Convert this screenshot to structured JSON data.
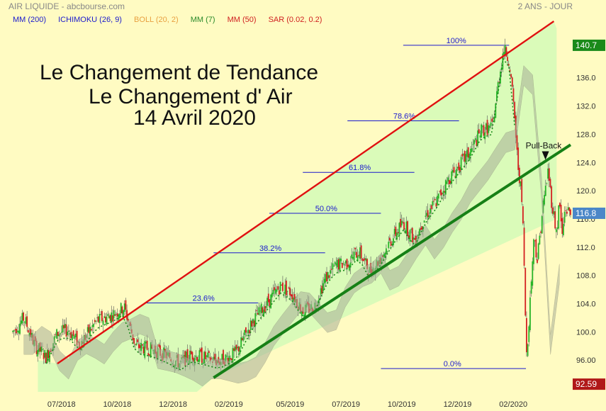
{
  "header": {
    "symbol": "AIR LIQUIDE - abcbourse.com",
    "period": "2 ANS - JOUR"
  },
  "legend": [
    {
      "label": "MM (200)",
      "color": "#1a1acd"
    },
    {
      "label": "ICHIMOKU (26, 9)",
      "color": "#1a1acd"
    },
    {
      "label": "BOLL (20, 2)",
      "color": "#e8a040"
    },
    {
      "label": "MM (7)",
      "color": "#2a8a2a"
    },
    {
      "label": "MM (50)",
      "color": "#d02020"
    },
    {
      "label": "SAR (0.02, 0.2)",
      "color": "#d02020"
    }
  ],
  "title": {
    "line1": "Le Changement de Tendance",
    "line2": "Le Changement d' Air",
    "line3": "14 Avril 2020"
  },
  "annotation": {
    "pullback": "Pull-Back"
  },
  "price_labels": {
    "top": "140.7",
    "last": "116.8",
    "bottom": "92.59"
  },
  "colors": {
    "up": "#28b428",
    "down": "#d42020",
    "trend_up": "#e01010",
    "trend_support": "#168016",
    "fib": "#1a1acd",
    "channel_fill": "#d6fbb8"
  },
  "chart_data": {
    "type": "candlestick",
    "x_tick_labels": [
      "07/2018",
      "10/2018",
      "12/2018",
      "02/2019",
      "05/2019",
      "07/2019",
      "10/2019",
      "12/2019",
      "02/2020"
    ],
    "y_tick_labels": [
      "96.00",
      "100.0",
      "104.0",
      "108.0",
      "112.0",
      "116.0",
      "120.0",
      "124.0",
      "128.0",
      "132.0",
      "136.0"
    ],
    "ylim": [
      92,
      143
    ],
    "fibonacci": [
      {
        "label": "100%",
        "value": 140.6
      },
      {
        "label": "78.6%",
        "value": 129.9
      },
      {
        "label": "61.8%",
        "value": 122.6
      },
      {
        "label": "50.0%",
        "value": 116.8
      },
      {
        "label": "38.2%",
        "value": 111.2
      },
      {
        "label": "23.6%",
        "value": 104.1
      },
      {
        "label": "0.0%",
        "value": 94.8
      }
    ],
    "close_path": [
      [
        0,
        100
      ],
      [
        0.02,
        102
      ],
      [
        0.04,
        98
      ],
      [
        0.06,
        96.5
      ],
      [
        0.08,
        99.8
      ],
      [
        0.1,
        100.3
      ],
      [
        0.12,
        98.2
      ],
      [
        0.15,
        101.5
      ],
      [
        0.18,
        102.5
      ],
      [
        0.2,
        103.5
      ],
      [
        0.22,
        98
      ],
      [
        0.25,
        97.5
      ],
      [
        0.28,
        96.5
      ],
      [
        0.3,
        95.5
      ],
      [
        0.32,
        96.8
      ],
      [
        0.35,
        96.2
      ],
      [
        0.37,
        95.8
      ],
      [
        0.4,
        97
      ],
      [
        0.43,
        101.5
      ],
      [
        0.46,
        104.5
      ],
      [
        0.48,
        106.5
      ],
      [
        0.5,
        105.5
      ],
      [
        0.52,
        103
      ],
      [
        0.54,
        103.5
      ],
      [
        0.56,
        107.5
      ],
      [
        0.58,
        109.5
      ],
      [
        0.6,
        109.8
      ],
      [
        0.62,
        111.5
      ],
      [
        0.64,
        108.5
      ],
      [
        0.66,
        110.5
      ],
      [
        0.68,
        113.2
      ],
      [
        0.7,
        115.5
      ],
      [
        0.72,
        113
      ],
      [
        0.74,
        116.5
      ],
      [
        0.76,
        118.5
      ],
      [
        0.78,
        121.5
      ],
      [
        0.8,
        123.5
      ],
      [
        0.82,
        125.5
      ],
      [
        0.84,
        128.5
      ],
      [
        0.86,
        129
      ],
      [
        0.87,
        135
      ],
      [
        0.88,
        140.2
      ],
      [
        0.89,
        138.5
      ],
      [
        0.9,
        130
      ],
      [
        0.905,
        124
      ],
      [
        0.91,
        121
      ],
      [
        0.915,
        115
      ],
      [
        0.918,
        105
      ],
      [
        0.921,
        97
      ],
      [
        0.925,
        101
      ],
      [
        0.93,
        108
      ],
      [
        0.935,
        114
      ],
      [
        0.94,
        110
      ],
      [
        0.95,
        117.5
      ],
      [
        0.96,
        123
      ],
      [
        0.965,
        119
      ],
      [
        0.97,
        116.5
      ],
      [
        0.975,
        114
      ],
      [
        0.98,
        118.5
      ],
      [
        0.985,
        113.5
      ],
      [
        0.99,
        117.5
      ],
      [
        1.0,
        116.8
      ]
    ],
    "trendline_red": [
      [
        0.08,
        95.5
      ],
      [
        0.97,
        144
      ]
    ],
    "trendline_green": [
      [
        0.36,
        93.5
      ],
      [
        1.0,
        126.5
      ]
    ],
    "pullback_index_frac": 0.955
  }
}
